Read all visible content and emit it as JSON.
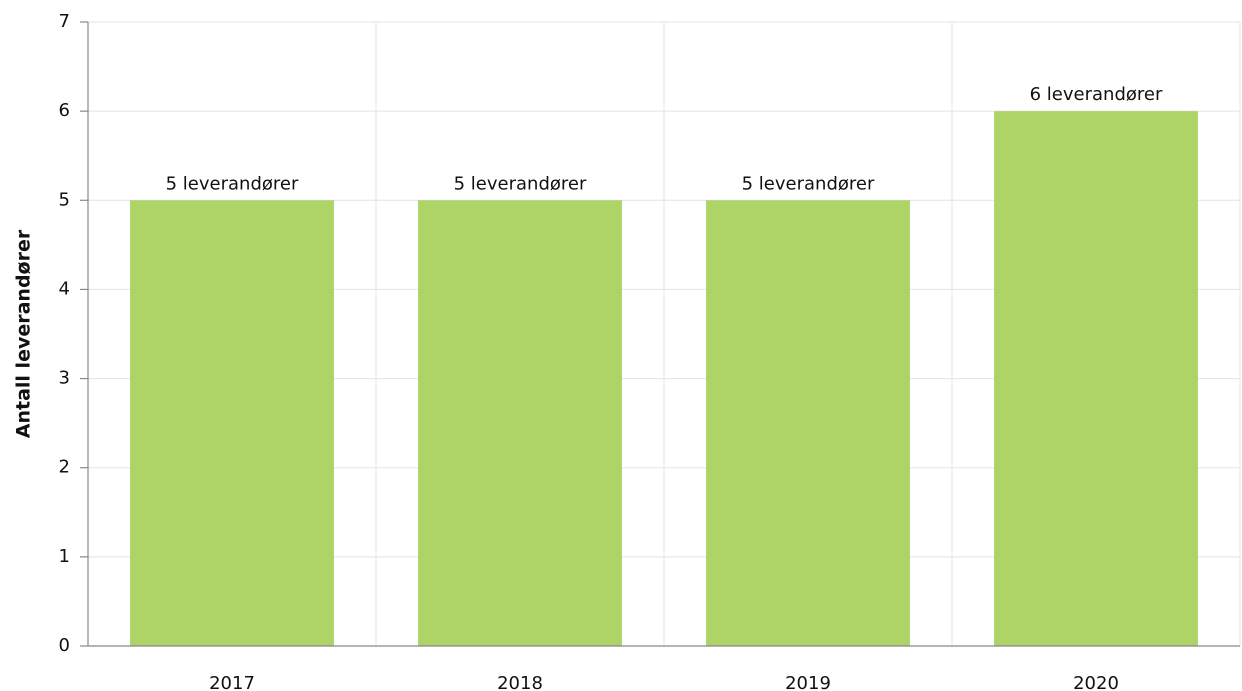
{
  "chart_data": {
    "type": "bar",
    "y_label": "Antall leverandører",
    "categories": [
      "2017",
      "2018",
      "2019",
      "2020"
    ],
    "values": [
      5,
      5,
      5,
      6
    ],
    "value_labels": [
      "5 leverandører",
      "5 leverandører",
      "5 leverandører",
      "6 leverandører"
    ],
    "color": "#acd467",
    "ylim": [
      0,
      7
    ],
    "yticks": [
      0,
      1,
      2,
      3,
      4,
      5,
      6,
      7
    ],
    "grid": true
  }
}
